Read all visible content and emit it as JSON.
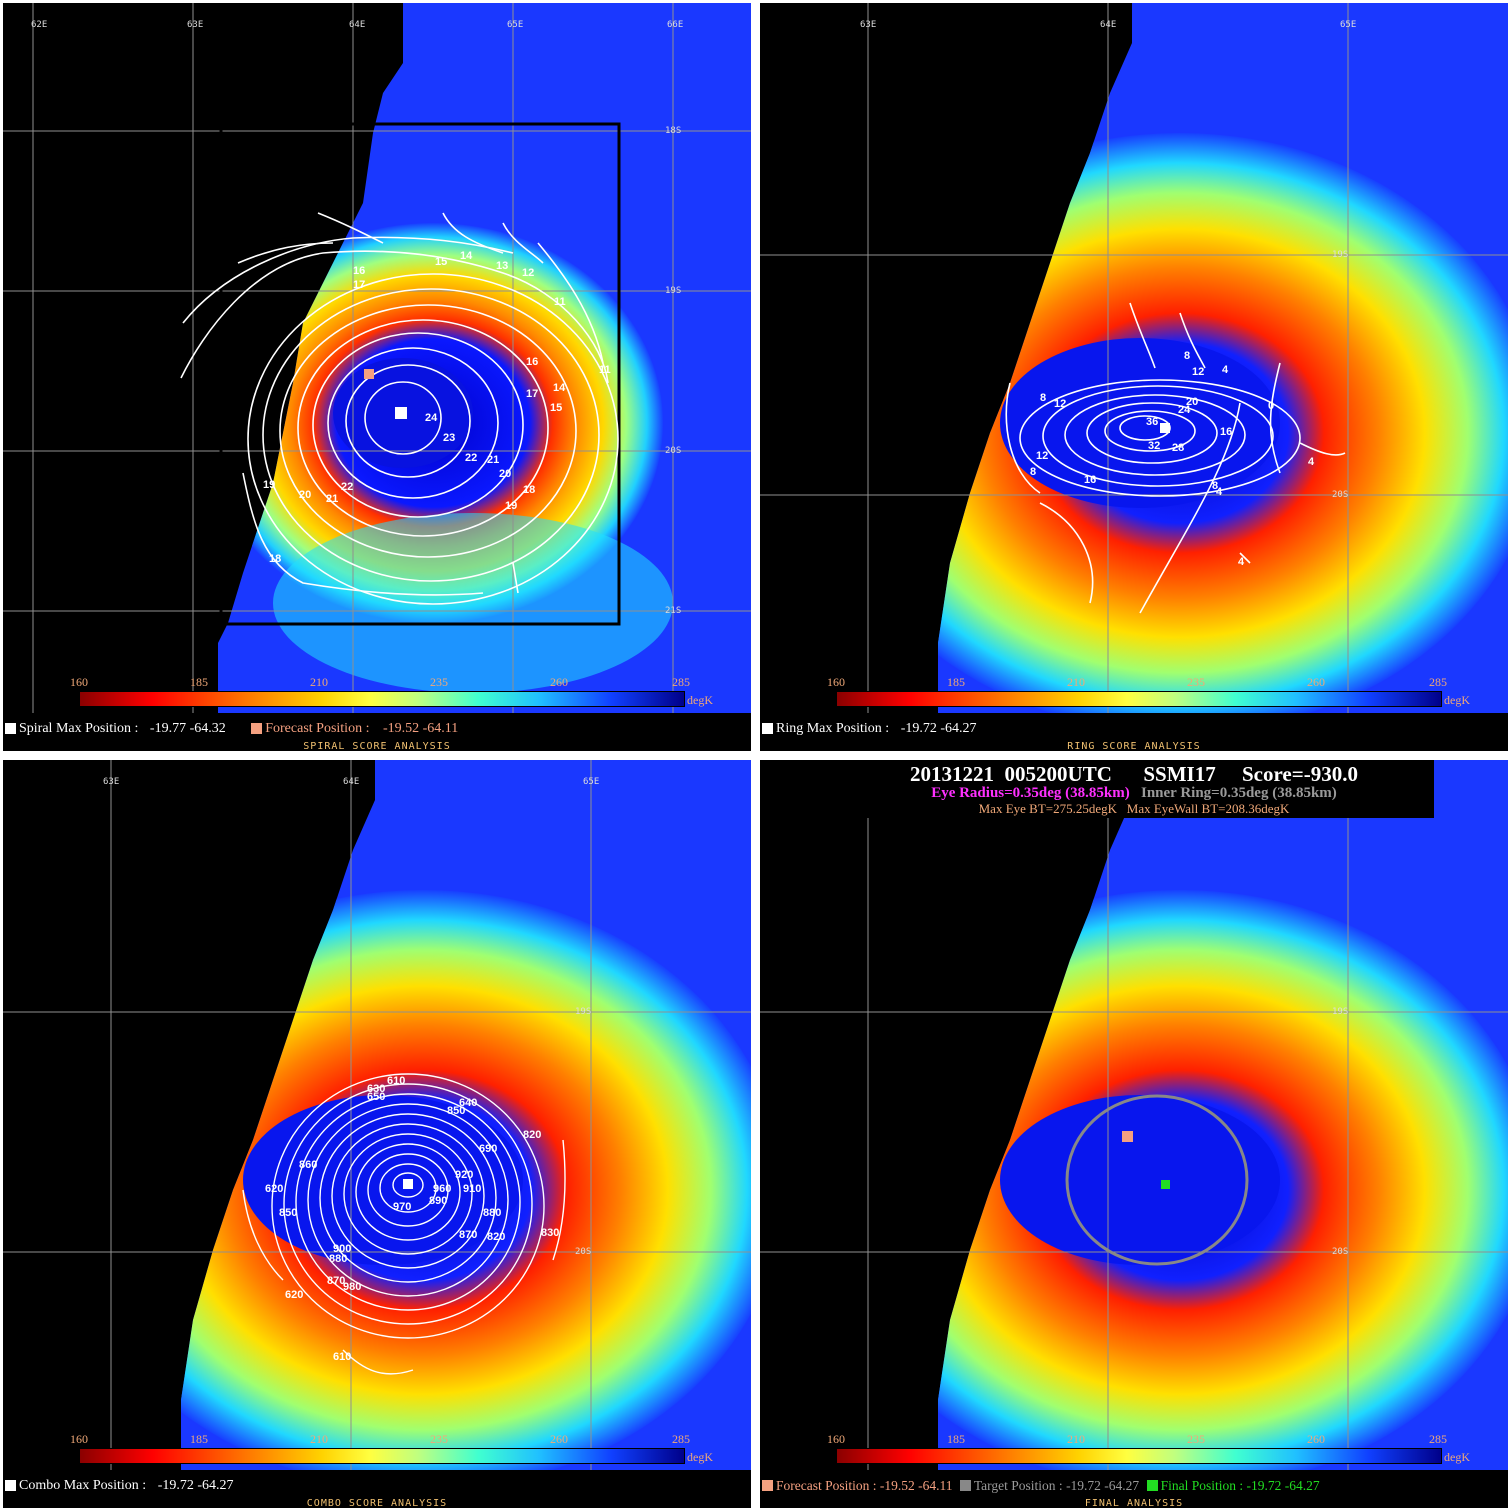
{
  "colorbar": {
    "ticks": [
      "160",
      "185",
      "210",
      "235",
      "260",
      "285"
    ],
    "unit": "degK",
    "colors": [
      "#8b0000",
      "#ff0000",
      "#ff7a00",
      "#ffd200",
      "#bfff80",
      "#40ffd0",
      "#20c0ff",
      "#1040ff",
      "#00008a"
    ]
  },
  "panels": {
    "spiral": {
      "lon_labels": [
        "62E",
        "63E",
        "64E",
        "65E",
        "66E"
      ],
      "lat_labels": [
        "18S",
        "19S",
        "20S",
        "21S"
      ],
      "contour_labels": [
        "15",
        "14",
        "13",
        "12",
        "16",
        "17",
        "11",
        "16",
        "11",
        "17",
        "14",
        "15",
        "24",
        "23",
        "22",
        "21",
        "20",
        "19",
        "18",
        "20",
        "21",
        "22",
        "19",
        "18"
      ],
      "legend": {
        "label1": "Spiral Max Position :",
        "value1": "-19.77 -64.32",
        "label2": "Forecast Position :",
        "value2": "-19.52 -64.11"
      },
      "footer": "SPIRAL SCORE ANALYSIS"
    },
    "ring": {
      "lon_labels": [
        "63E",
        "64E",
        "65E"
      ],
      "lat_labels": [
        "19S",
        "20S"
      ],
      "contour_labels": [
        "8",
        "12",
        "4",
        "8",
        "12",
        "20",
        "0",
        "36",
        "24",
        "32",
        "28",
        "16",
        "12",
        "8",
        "16",
        "4",
        "8",
        "4",
        "4"
      ],
      "legend": {
        "label1": "Ring Max Position :",
        "value1": "-19.72 -64.27"
      },
      "footer": "RING SCORE ANALYSIS"
    },
    "combo": {
      "lon_labels": [
        "63E",
        "64E",
        "65E"
      ],
      "lat_labels": [
        "19S",
        "20S"
      ],
      "contour_labels": [
        "610",
        "630",
        "650",
        "640",
        "690",
        "820",
        "850",
        "920",
        "620",
        "960",
        "860",
        "910",
        "970",
        "850",
        "880",
        "890",
        "870",
        "820",
        "830",
        "900",
        "880",
        "870",
        "980",
        "620",
        "610"
      ],
      "legend": {
        "label1": "Combo Max Position :",
        "value1": "-19.72 -64.27"
      },
      "footer": "COMBO SCORE ANALYSIS"
    },
    "final": {
      "lat_labels": [
        "19S",
        "20S"
      ],
      "info": {
        "line1": "20131221  005200UTC      SSMI17     Score=-930.0",
        "eye_radius": "Eye Radius=0.35deg (38.85km)",
        "inner_ring": "Inner Ring=0.35deg (38.85km)",
        "max_eye": "Max Eye BT=275.25degK",
        "max_eyewall": "Max EyeWall BT=208.36degK"
      },
      "legend": {
        "forecast_label": "Forecast Position :",
        "forecast_value": "-19.52 -64.11",
        "target_label": "Target Position :",
        "target_value": "-19.72 -64.27",
        "final_label": "Final Position :",
        "final_value": "-19.72 -64.27"
      },
      "footer": "FINAL ANALYSIS"
    }
  },
  "marker_colors": {
    "max": "#ffffff",
    "forecast": "#f4a080",
    "target": "#888888",
    "final": "#22dd22",
    "eye_radius_text": "#ff30ff",
    "inner_ring_text": "#9a9a9a"
  }
}
